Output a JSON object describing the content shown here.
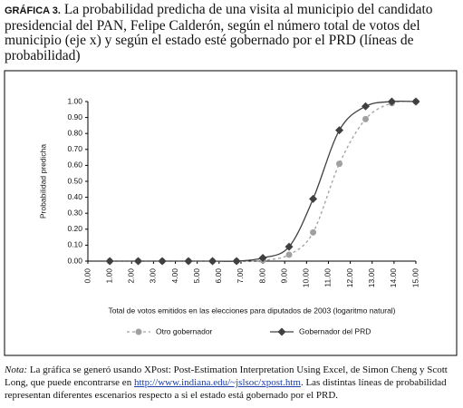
{
  "label": "GRÁFICA 3.",
  "title": "La probabilidad predicha de una visita al municipio del candidato presidencial del PAN, Felipe Calderón, según el número total de votos del municipio (eje x) y según el estado esté gobernado por el PRD (líneas de probabilidad)",
  "chart_data": {
    "type": "line",
    "y_label": "Probabilidad predicha",
    "x_label": "Total de votos emitidos en las elecciones para diputados de 2003 (logaritmo natural)",
    "x": [
      1.0,
      2.3,
      3.4,
      4.6,
      5.7,
      6.8,
      8.0,
      9.2,
      10.3,
      11.5,
      12.7,
      13.9,
      15.0
    ],
    "series": [
      {
        "name": "Otro gobernador",
        "color": "#a0a0a0",
        "marker": "circle",
        "dashed": true,
        "values": [
          0,
          0,
          0,
          0,
          0,
          0,
          0.005,
          0.04,
          0.18,
          0.61,
          0.89,
          0.99,
          1.0
        ]
      },
      {
        "name": "Gobernador del PRD",
        "color": "#404040",
        "marker": "diamond",
        "dashed": false,
        "values": [
          0,
          0,
          0,
          0,
          0,
          0,
          0.02,
          0.09,
          0.39,
          0.82,
          0.97,
          1.0,
          1.0
        ]
      }
    ],
    "xlim": [
      0,
      15
    ],
    "ylim": [
      0,
      1
    ],
    "xticks": [
      {
        "value": 0,
        "label": "0.00"
      },
      {
        "value": 1,
        "label": "1.00"
      },
      {
        "value": 2,
        "label": "2.00"
      },
      {
        "value": 3,
        "label": "3.00"
      },
      {
        "value": 4,
        "label": "4.00"
      },
      {
        "value": 5,
        "label": "5.00"
      },
      {
        "value": 6,
        "label": "6.00"
      },
      {
        "value": 7,
        "label": "7.00"
      },
      {
        "value": 8,
        "label": "8.00"
      },
      {
        "value": 9,
        "label": "9.00"
      },
      {
        "value": 10,
        "label": "10.00"
      },
      {
        "value": 11,
        "label": "11.00"
      },
      {
        "value": 12,
        "label": "12.00"
      },
      {
        "value": 13,
        "label": "13.00"
      },
      {
        "value": 14,
        "label": "14.00"
      },
      {
        "value": 15,
        "label": "15.00"
      }
    ],
    "yticks": [
      {
        "value": 0,
        "label": "0.00"
      },
      {
        "value": 0.1,
        "label": "0.10"
      },
      {
        "value": 0.2,
        "label": "0.20"
      },
      {
        "value": 0.3,
        "label": "0.30"
      },
      {
        "value": 0.4,
        "label": "0.40"
      },
      {
        "value": 0.5,
        "label": "0.50"
      },
      {
        "value": 0.6,
        "label": "0.60"
      },
      {
        "value": 0.7,
        "label": "0.70"
      },
      {
        "value": 0.8,
        "label": "0.80"
      },
      {
        "value": 0.9,
        "label": "0.90"
      },
      {
        "value": 1,
        "label": "1.00"
      }
    ],
    "grid": false
  },
  "note": {
    "label": "Nota:",
    "text": "La gráfica se generó usando XPost: Post-Estimation Interpretation Using Excel, de Simon Cheng y Scott Long, que puede encontrarse en",
    "link": "http://www.indiana.edu/~jslsoc/xpost.htm",
    "end": ". Las distintas líneas de probabilidad representan diferentes escenarios respecto a si el estado está gobernado por el PRD."
  }
}
